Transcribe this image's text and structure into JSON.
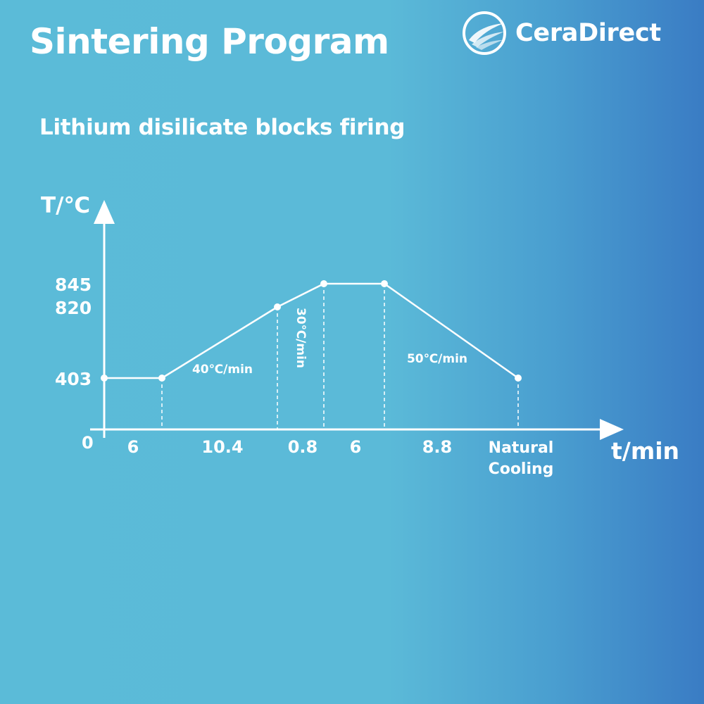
{
  "header": {
    "title": "Sintering Program",
    "subtitle": "Lithium disilicate blocks firing",
    "brand": "CeraDirect",
    "brand_icon": "ceradirect-wing-logo-icon"
  },
  "colors": {
    "background_left": "#5bbbd8",
    "background_right": "#3a7cc4",
    "foreground": "#ffffff"
  },
  "chart_data": {
    "type": "line",
    "title": "Lithium disilicate blocks firing",
    "ylabel": "T/℃",
    "xlabel": "t/min",
    "origin_label": "0",
    "y_ticks": [
      "845",
      "820",
      "403"
    ],
    "segments": [
      {
        "label": "6",
        "duration": 6
      },
      {
        "label": "10.4",
        "duration": 10.4
      },
      {
        "label": "0.8",
        "duration": 0.8
      },
      {
        "label": "6",
        "duration": 6
      },
      {
        "label": "8.8",
        "duration": 8.8
      },
      {
        "label": "Natural\nCooling",
        "duration": null
      }
    ],
    "points": [
      {
        "t": 0,
        "T": 403
      },
      {
        "t": 6,
        "T": 403
      },
      {
        "t": 16.4,
        "T": 820
      },
      {
        "t": 17.2,
        "T": 845
      },
      {
        "t": 23.2,
        "T": 845
      },
      {
        "t": 32,
        "T": 403
      }
    ],
    "rate_labels": [
      {
        "text": "40℃/min",
        "segment": 1,
        "orientation": "horizontal"
      },
      {
        "text": "30℃/min",
        "segment": 2,
        "orientation": "vertical"
      },
      {
        "text": "50℃/min",
        "segment": 4,
        "orientation": "horizontal"
      }
    ]
  }
}
